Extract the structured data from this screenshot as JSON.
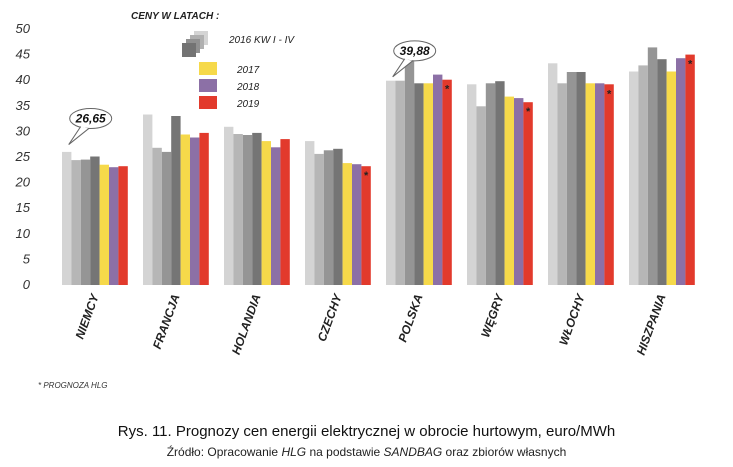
{
  "chart_data": {
    "type": "bar",
    "ylim": [
      0,
      50
    ],
    "yticks": [
      "0",
      "5",
      "10",
      "15",
      "20",
      "25",
      "30",
      "35",
      "40",
      "45",
      "50"
    ],
    "grid": false,
    "legend_placement": "top-left",
    "legend_title": "CENY W LATACH :",
    "categories": [
      "NIEMCY",
      "FRANCJA",
      "HOLANDIA",
      "CZECHY",
      "POLSKA",
      "WĘGRY",
      "WŁOCHY",
      "HISZPANIA"
    ],
    "series": [
      {
        "name": "2016 KW I - IV",
        "color": "#d4d4d4",
        "values": [
          26.0,
          33.3,
          30.9,
          28.1,
          39.9,
          39.2,
          43.3,
          41.7
        ]
      },
      {
        "name": "2016 KW I - IV",
        "color": "#b6b6b6",
        "values": [
          24.4,
          26.8,
          29.5,
          25.6,
          39.9,
          34.9,
          39.4,
          42.9
        ]
      },
      {
        "name": "2016 KW I - IV",
        "color": "#959595",
        "values": [
          24.5,
          26.0,
          29.3,
          26.3,
          44.0,
          39.4,
          41.6,
          46.4
        ]
      },
      {
        "name": "2016 KW I - IV",
        "color": "#757575",
        "values": [
          25.1,
          33.0,
          29.7,
          26.6,
          39.4,
          39.8,
          41.6,
          44.1
        ]
      },
      {
        "name": "2017",
        "color": "#f6d94a",
        "values": [
          23.5,
          29.4,
          28.1,
          23.8,
          39.4,
          36.8,
          39.4,
          41.7
        ]
      },
      {
        "name": "2018",
        "color": "#8c70a6",
        "values": [
          23.0,
          28.8,
          26.9,
          23.6,
          41.1,
          36.5,
          39.4,
          44.3
        ]
      },
      {
        "name": "2019",
        "color": "#e23a2c",
        "values": [
          23.2,
          29.7,
          28.5,
          23.2,
          40.1,
          35.7,
          39.2,
          45.0
        ]
      }
    ],
    "callouts": [
      {
        "category": "NIEMCY",
        "label": "26,65",
        "value": 26.65
      },
      {
        "category": "POLSKA",
        "label": "39,88",
        "value": 39.88
      }
    ],
    "forecast_marker": "*",
    "forecast_categories": [
      "CZECHY",
      "POLSKA",
      "WĘGRY",
      "WŁOCHY",
      "HISZPANIA"
    ]
  },
  "footnote": "* PROGNOZA HLG",
  "caption": {
    "title": "Rys. 11. Prognozy cen energii elektrycznej w obrocie hurtowym, euro/MWh",
    "source_prefix": "Źródło: Opracowanie ",
    "source_hlg": "HLG",
    "source_mid": " na podstawie ",
    "source_sandbag": "SANDBAG",
    "source_suffix": " oraz zbiorów własnych"
  }
}
